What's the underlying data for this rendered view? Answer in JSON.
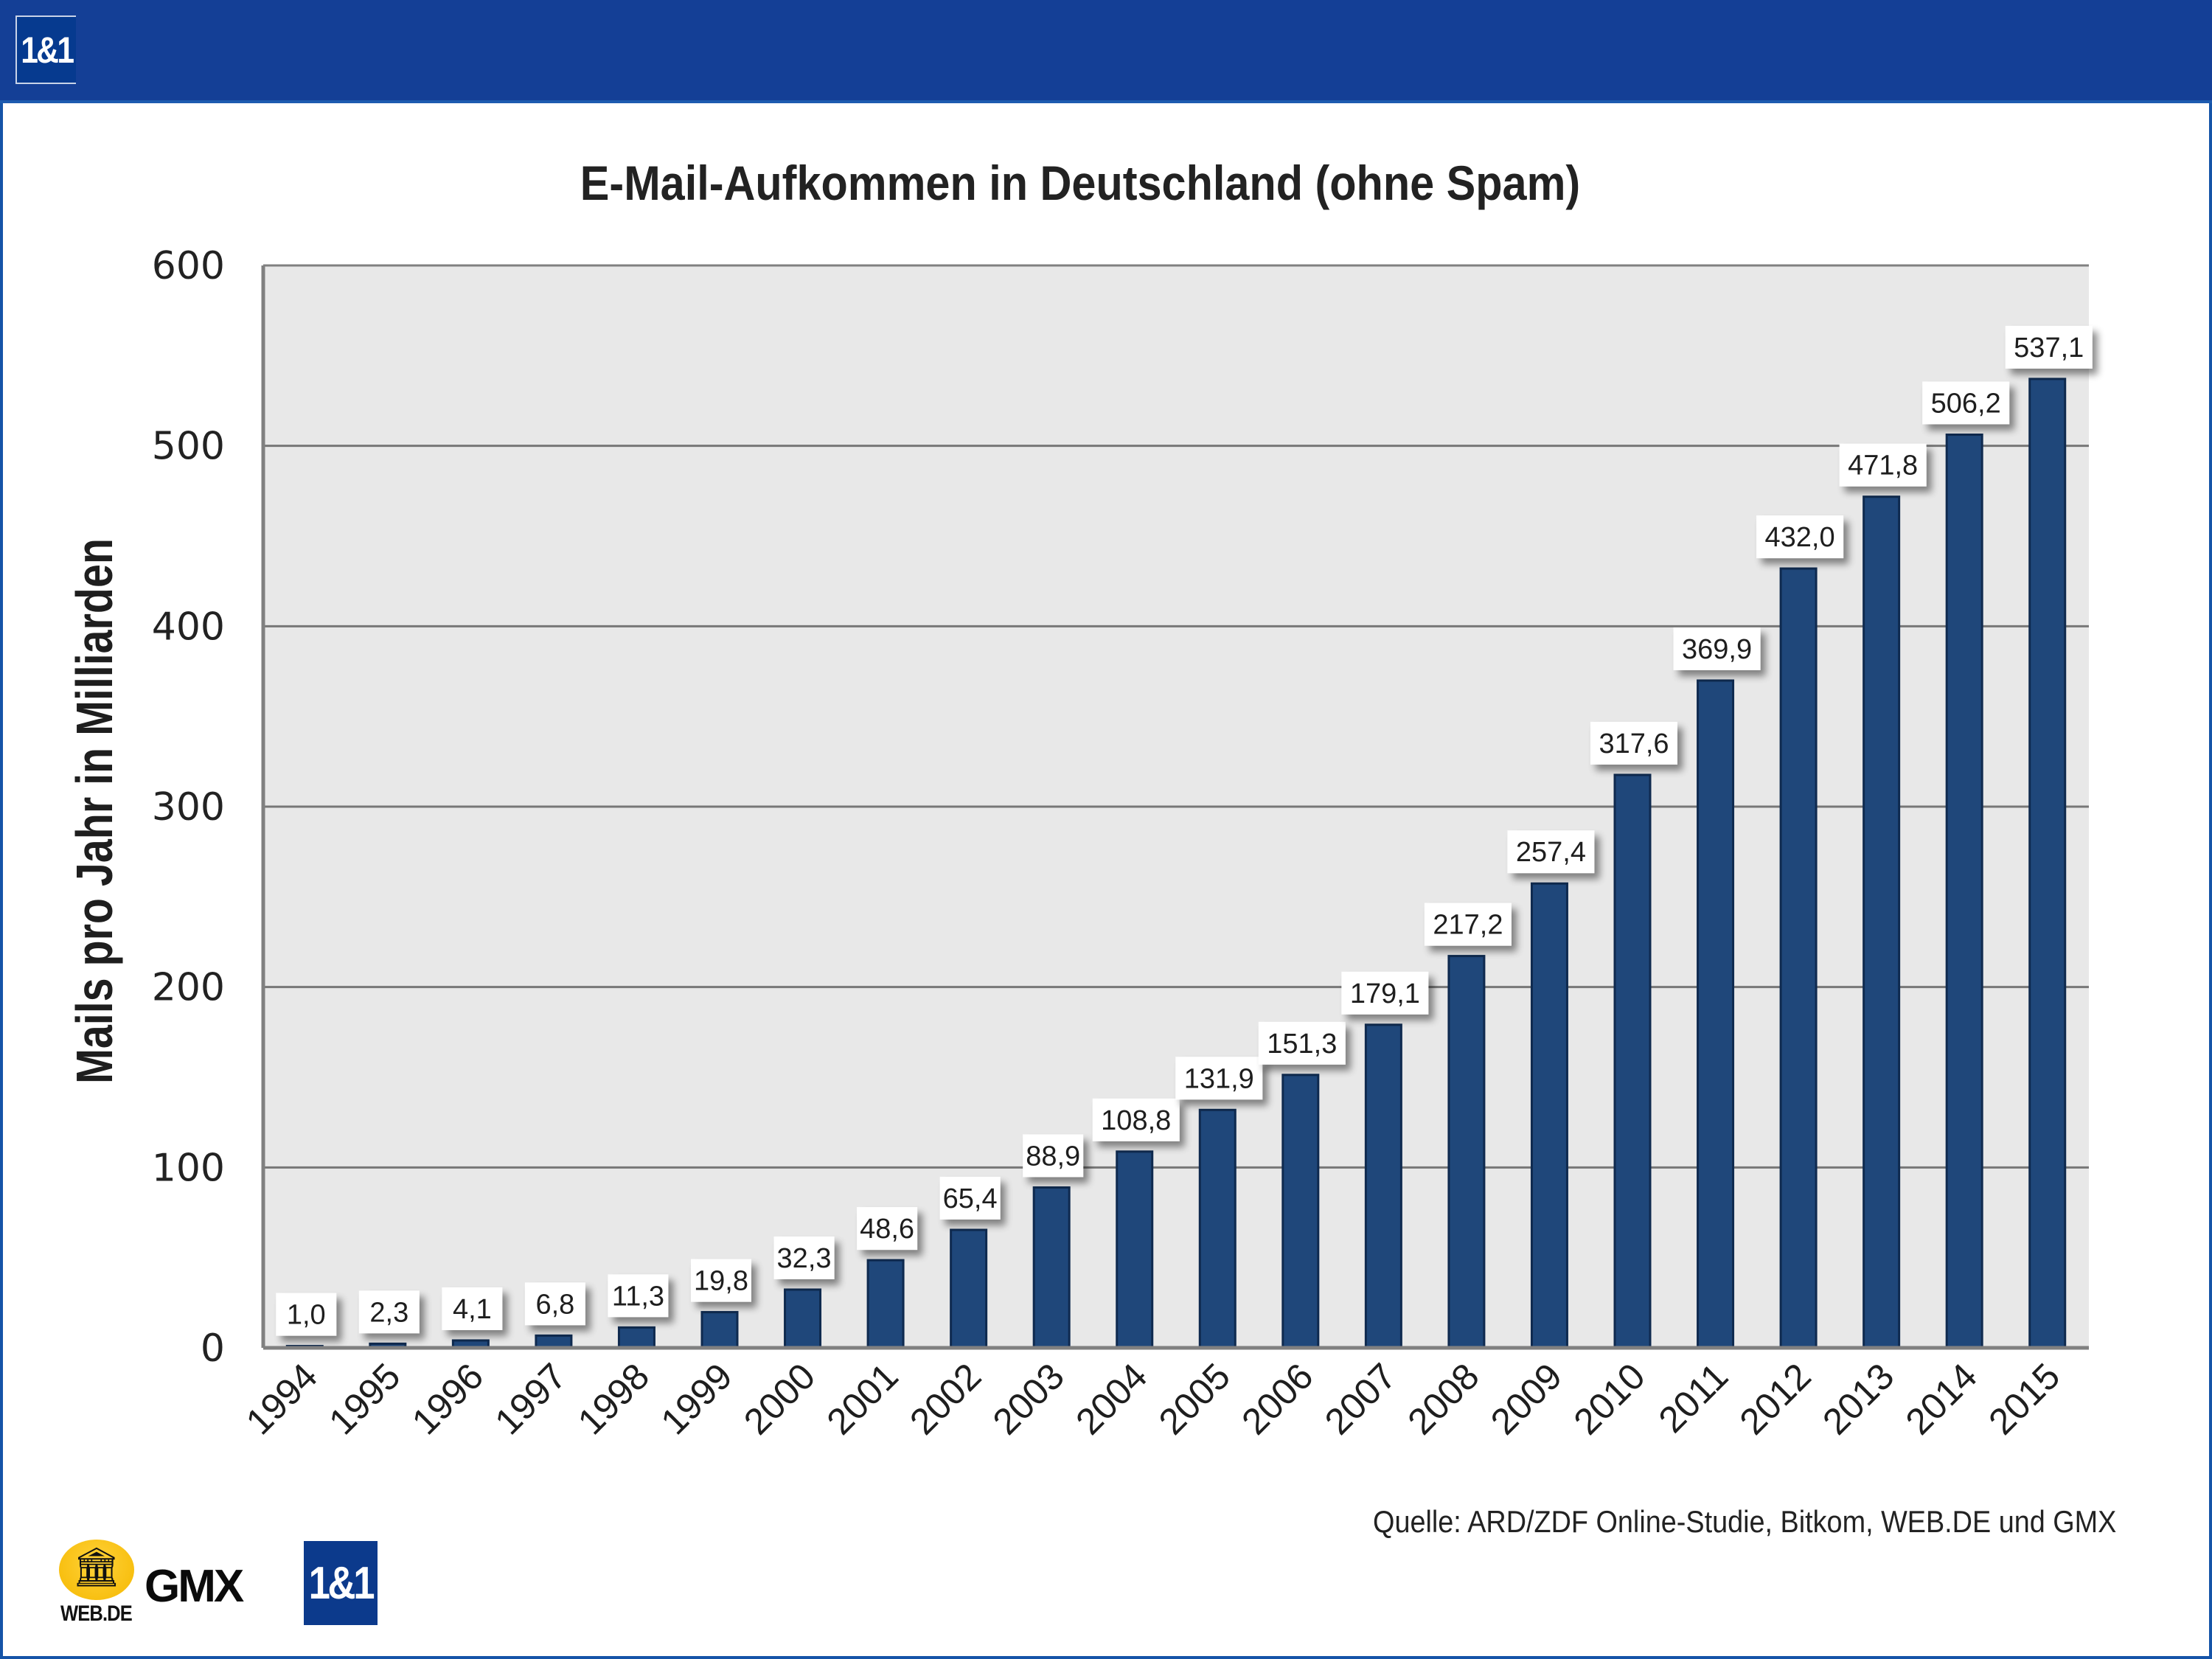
{
  "header": {
    "logo_text": "1&1"
  },
  "colors": {
    "header_blue": "#143f96",
    "bar": "#1f477a",
    "bar_edge": "#0f2a4f",
    "plot_background": "#e8e8e8",
    "gridline": "#777777",
    "label_box": "#ffffff"
  },
  "chart_data": {
    "type": "bar",
    "title": "E-Mail-Aufkommen in Deutschland (ohne Spam)",
    "xlabel": "",
    "ylabel": "Mails pro Jahr in Milliarden",
    "ylim": [
      0,
      600
    ],
    "yticks": [
      0,
      100,
      200,
      300,
      400,
      500,
      600
    ],
    "ytick_labels": [
      "0",
      "100",
      "200",
      "300",
      "400",
      "500",
      "600"
    ],
    "grid": true,
    "legend": "none",
    "categories": [
      "1994",
      "1995",
      "1996",
      "1997",
      "1998",
      "1999",
      "2000",
      "2001",
      "2002",
      "2003",
      "2004",
      "2005",
      "2006",
      "2007",
      "2008",
      "2009",
      "2010",
      "2011",
      "2012",
      "2013",
      "2014",
      "2015"
    ],
    "values": [
      1.0,
      2.3,
      4.1,
      6.8,
      11.3,
      19.8,
      32.3,
      48.6,
      65.4,
      88.9,
      108.8,
      131.9,
      151.3,
      179.1,
      217.2,
      257.4,
      317.6,
      369.9,
      432.0,
      471.8,
      506.2,
      537.1
    ],
    "data_labels": [
      "1,0",
      "2,3",
      "4,1",
      "6,8",
      "11,3",
      "19,8",
      "32,3",
      "48,6",
      "65,4",
      "88,9",
      "108,8",
      "131,9",
      "151,3",
      "179,1",
      "217,2",
      "257,4",
      "317,6",
      "369,9",
      "432,0",
      "471,8",
      "506,2",
      "537,1"
    ]
  },
  "footer": {
    "source": "Quelle: ARD/ZDF Online-Studie, Bitkom, WEB.DE und GMX",
    "logos": {
      "webde": "WEB.DE",
      "gmx": "GMX",
      "oneandone": "1&1"
    }
  }
}
